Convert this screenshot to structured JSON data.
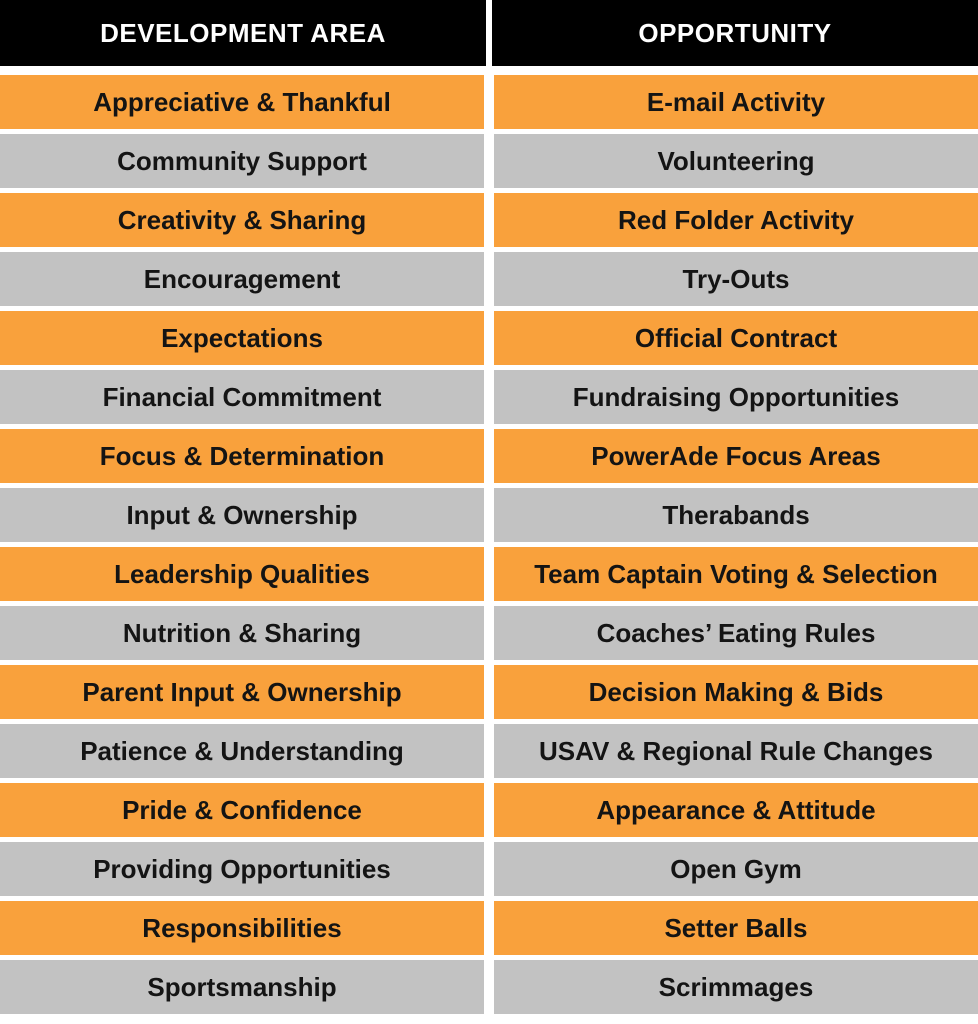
{
  "table": {
    "columns": [
      "DEVELOPMENT AREA",
      "OPPORTUNITY"
    ],
    "rows": [
      {
        "development_area": "Appreciative & Thankful",
        "opportunity": "E-mail Activity"
      },
      {
        "development_area": "Community Support",
        "opportunity": "Volunteering"
      },
      {
        "development_area": "Creativity & Sharing",
        "opportunity": "Red Folder Activity"
      },
      {
        "development_area": "Encouragement",
        "opportunity": "Try-Outs"
      },
      {
        "development_area": "Expectations",
        "opportunity": "Official Contract"
      },
      {
        "development_area": "Financial Commitment",
        "opportunity": "Fundraising Opportunities"
      },
      {
        "development_area": "Focus & Determination",
        "opportunity": "PowerAde Focus Areas"
      },
      {
        "development_area": "Input & Ownership",
        "opportunity": "Therabands"
      },
      {
        "development_area": "Leadership Qualities",
        "opportunity": "Team Captain Voting & Selection"
      },
      {
        "development_area": "Nutrition & Sharing",
        "opportunity": "Coaches’ Eating Rules"
      },
      {
        "development_area": "Parent Input & Ownership",
        "opportunity": "Decision Making & Bids"
      },
      {
        "development_area": "Patience & Understanding",
        "opportunity": "USAV & Regional Rule Changes"
      },
      {
        "development_area": "Pride & Confidence",
        "opportunity": "Appearance & Attitude"
      },
      {
        "development_area": "Providing Opportunities",
        "opportunity": "Open Gym"
      },
      {
        "development_area": "Responsibilities",
        "opportunity": "Setter Balls"
      },
      {
        "development_area": "Sportsmanship",
        "opportunity": "Scrimmages"
      }
    ]
  },
  "colors": {
    "header_bg": "#000000",
    "header_text": "#ffffff",
    "row_orange": "#f9a13c",
    "row_gray": "#c2c2c2",
    "body_text": "#141414",
    "gap": "#ffffff"
  }
}
